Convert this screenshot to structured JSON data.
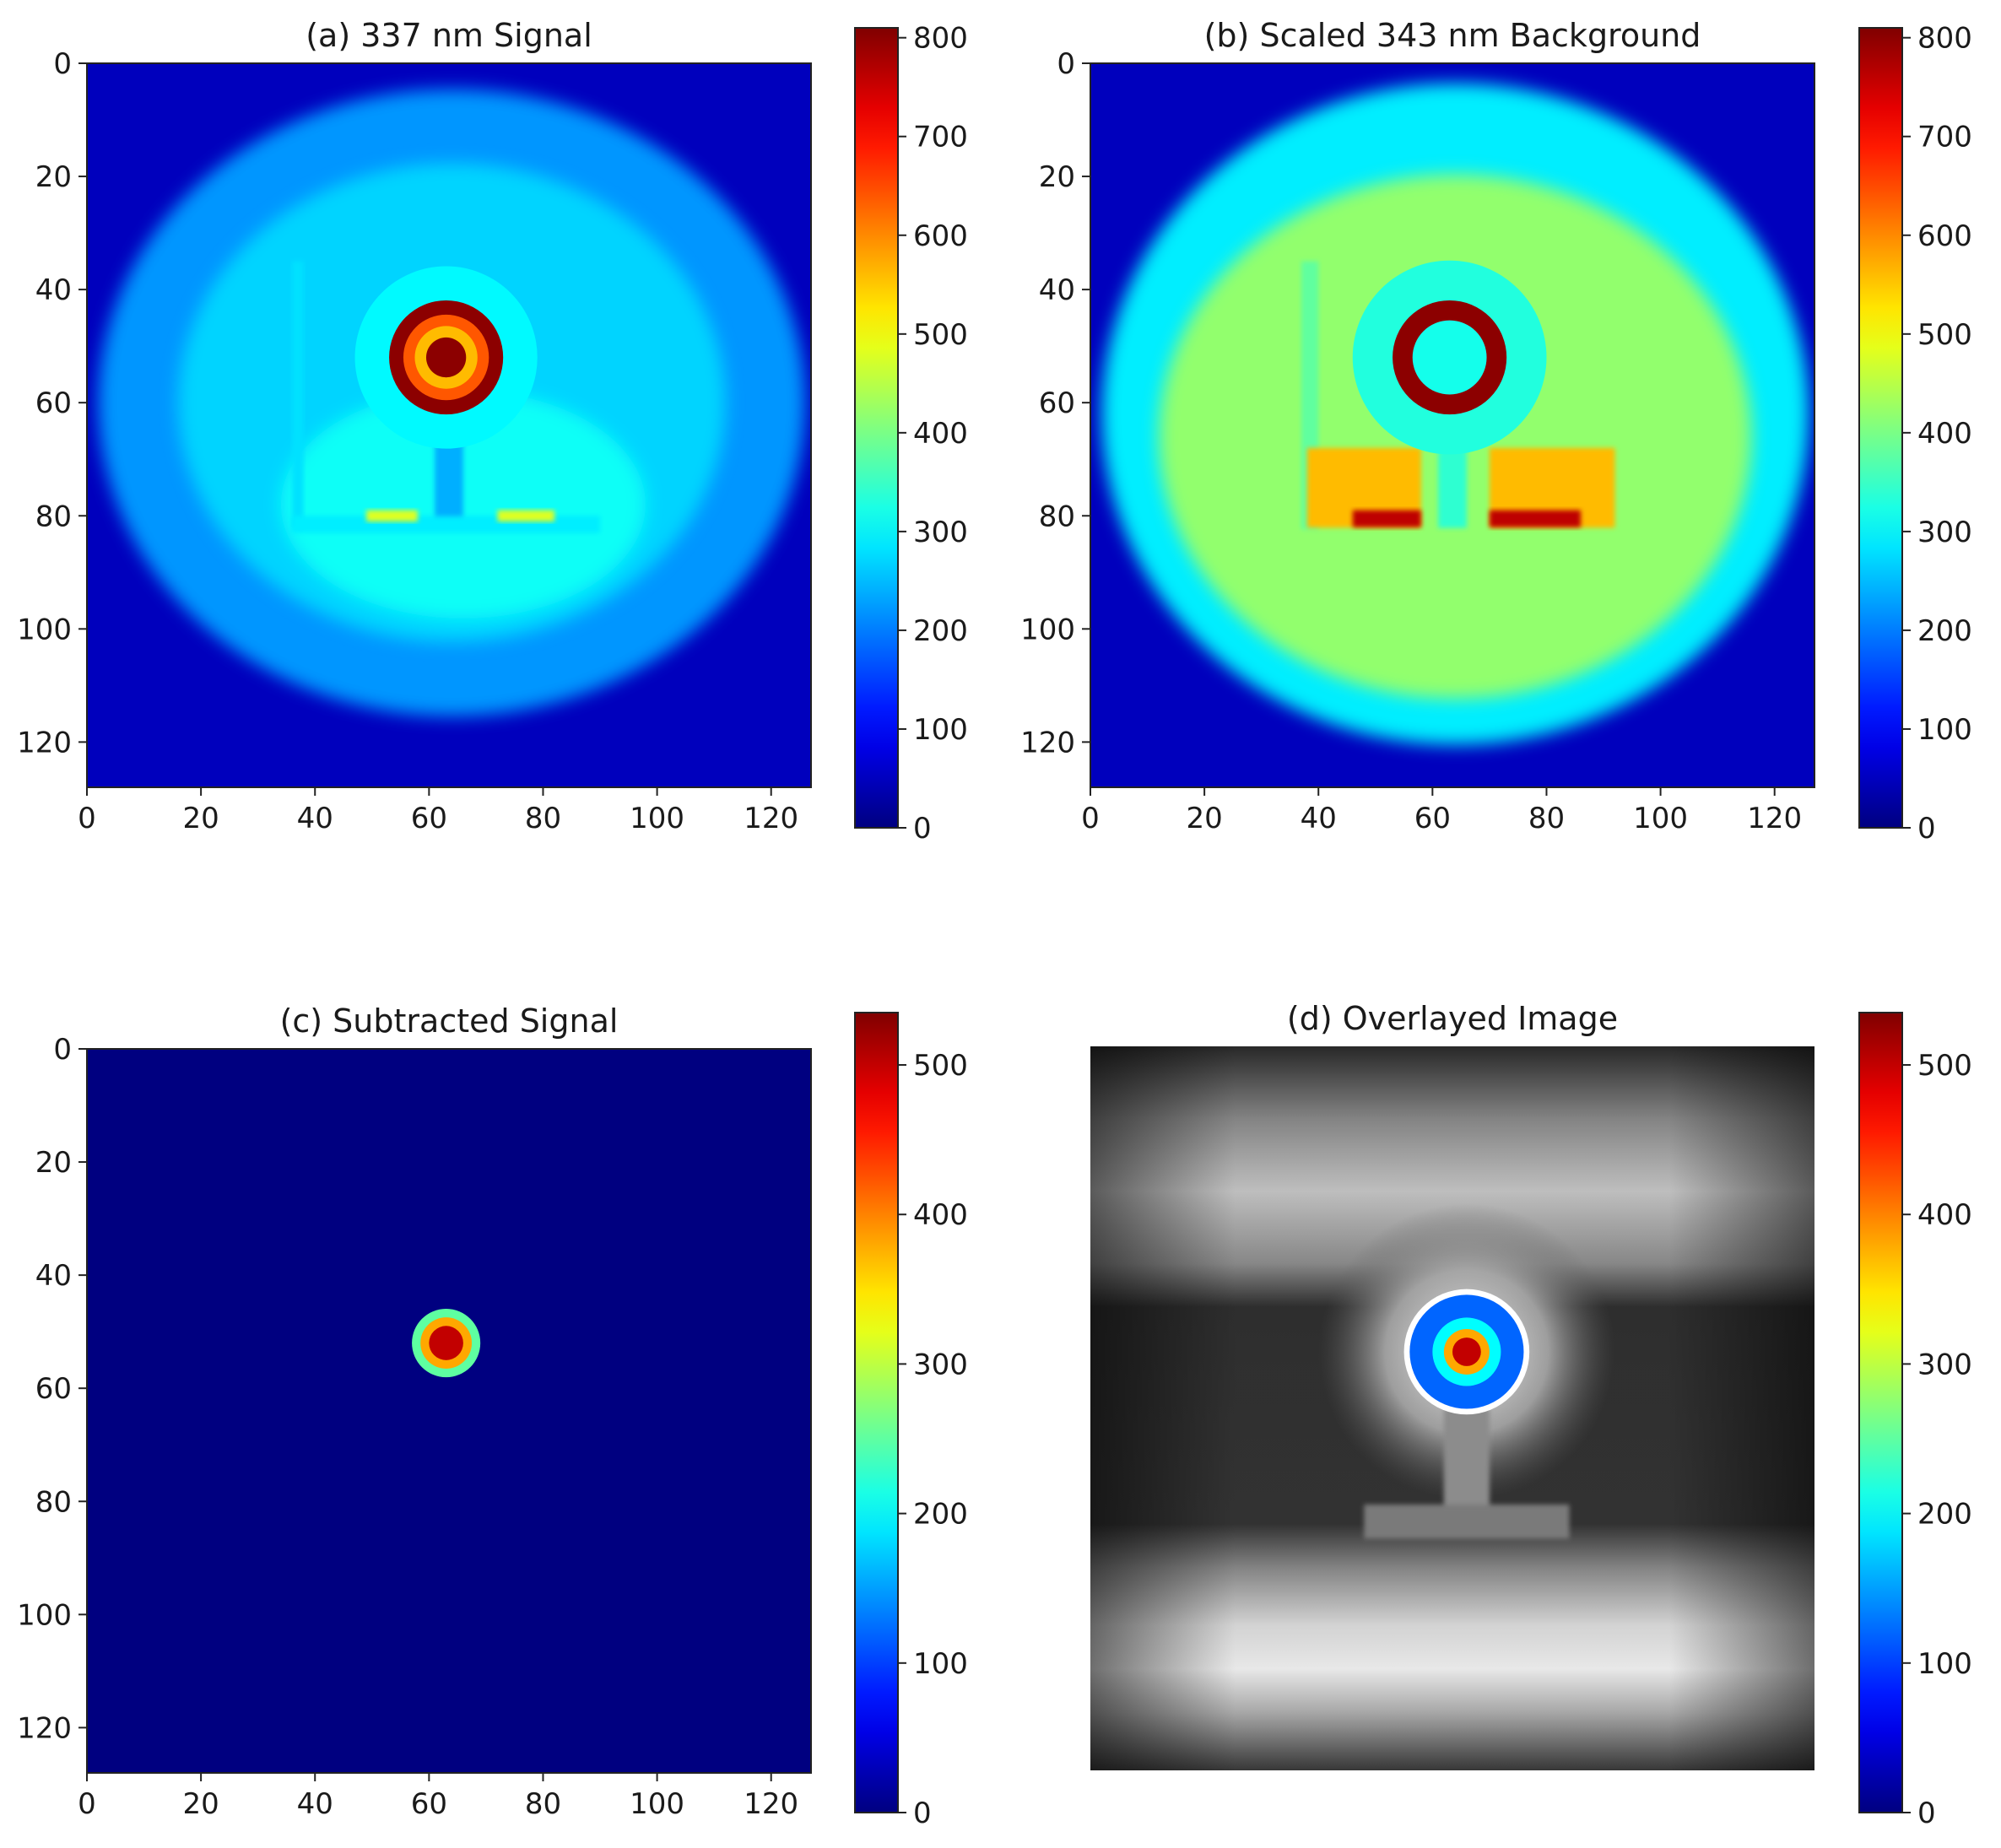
{
  "figure": {
    "background": "#ffffff",
    "colormap": "jet",
    "overlay_colormap": "gray"
  },
  "chart_data": [
    {
      "type": "heatmap",
      "panel": "a",
      "title": "(a) 337 nm Signal",
      "xlabel": "",
      "ylabel": "",
      "xlim": [
        0,
        127
      ],
      "ylim": [
        128,
        0
      ],
      "y_inverted": true,
      "x_ticks": [
        0,
        20,
        40,
        60,
        80,
        100,
        120
      ],
      "y_ticks": [
        0,
        20,
        40,
        60,
        80,
        100,
        120
      ],
      "colorbar": {
        "vmin": 0,
        "vmax": 810,
        "ticks": [
          0,
          100,
          200,
          300,
          400,
          500,
          600,
          700,
          800
        ]
      },
      "features": [
        {
          "kind": "field",
          "shape": "ellipse",
          "cx": 64,
          "cy": 60,
          "rx": 62,
          "ry": 55,
          "value": 220
        },
        {
          "kind": "field",
          "shape": "ellipse",
          "cx": 64,
          "cy": 60,
          "rx": 48,
          "ry": 42,
          "value": 270
        },
        {
          "kind": "field",
          "shape": "ellipse",
          "cx": 66,
          "cy": 78,
          "rx": 32,
          "ry": 20,
          "value": 310
        },
        {
          "kind": "region",
          "shape": "rect",
          "x0": 36,
          "y0": 35,
          "x1": 38,
          "y1": 82,
          "value": 280
        },
        {
          "kind": "region",
          "shape": "rect",
          "x0": 36,
          "y0": 80,
          "x1": 90,
          "y1": 83,
          "value": 290
        },
        {
          "kind": "region",
          "shape": "rect",
          "x0": 49,
          "y0": 79,
          "x1": 58,
          "y1": 81,
          "value": 480
        },
        {
          "kind": "region",
          "shape": "rect",
          "x0": 72,
          "y0": 79,
          "x1": 82,
          "y1": 81,
          "value": 480
        },
        {
          "kind": "region",
          "shape": "rect",
          "x0": 61,
          "y0": 64,
          "x1": 66,
          "y1": 80,
          "value": 240
        },
        {
          "kind": "disk",
          "cx": 63,
          "cy": 52,
          "r": 16,
          "value": 300
        },
        {
          "kind": "disk",
          "cx": 63,
          "cy": 52,
          "r": 10,
          "value": 800
        },
        {
          "kind": "disk",
          "cx": 63,
          "cy": 52,
          "r": 7.5,
          "value": 640
        },
        {
          "kind": "disk",
          "cx": 63,
          "cy": 52,
          "r": 5.5,
          "value": 560
        },
        {
          "kind": "disk",
          "cx": 63,
          "cy": 52,
          "r": 3.5,
          "value": 800
        }
      ]
    },
    {
      "type": "heatmap",
      "panel": "b",
      "title": "(b) Scaled 343 nm Background",
      "xlabel": "",
      "ylabel": "",
      "xlim": [
        0,
        127
      ],
      "ylim": [
        128,
        0
      ],
      "y_inverted": true,
      "x_ticks": [
        0,
        20,
        40,
        60,
        80,
        100,
        120
      ],
      "y_ticks": [
        0,
        20,
        40,
        60,
        80,
        100,
        120
      ],
      "colorbar": {
        "vmin": 0,
        "vmax": 810,
        "ticks": [
          0,
          100,
          200,
          300,
          400,
          500,
          600,
          700,
          800
        ]
      },
      "features": [
        {
          "kind": "field",
          "shape": "ellipse",
          "cx": 64,
          "cy": 62,
          "rx": 62,
          "ry": 58,
          "value": 290
        },
        {
          "kind": "field",
          "shape": "ellipse",
          "cx": 64,
          "cy": 66,
          "rx": 52,
          "ry": 46,
          "value": 420
        },
        {
          "kind": "region",
          "shape": "rect",
          "x0": 37,
          "y0": 35,
          "x1": 40,
          "y1": 82,
          "value": 380
        },
        {
          "kind": "region",
          "shape": "rect",
          "x0": 38,
          "y0": 68,
          "x1": 58,
          "y1": 82,
          "value": 560
        },
        {
          "kind": "region",
          "shape": "rect",
          "x0": 70,
          "y0": 68,
          "x1": 92,
          "y1": 82,
          "value": 560
        },
        {
          "kind": "region",
          "shape": "rect",
          "x0": 46,
          "y0": 79,
          "x1": 58,
          "y1": 82,
          "value": 760
        },
        {
          "kind": "region",
          "shape": "rect",
          "x0": 70,
          "y0": 79,
          "x1": 86,
          "y1": 82,
          "value": 760
        },
        {
          "kind": "region",
          "shape": "rect",
          "x0": 61,
          "y0": 64,
          "x1": 66,
          "y1": 82,
          "value": 340
        },
        {
          "kind": "disk",
          "cx": 63,
          "cy": 52,
          "r": 17,
          "value": 330
        },
        {
          "kind": "disk",
          "cx": 63,
          "cy": 52,
          "r": 10,
          "value": 800
        },
        {
          "kind": "disk",
          "cx": 63,
          "cy": 52,
          "r": 6.5,
          "value": 320
        }
      ]
    },
    {
      "type": "heatmap",
      "panel": "c",
      "title": "(c) Subtracted Signal",
      "xlabel": "",
      "ylabel": "",
      "xlim": [
        0,
        127
      ],
      "ylim": [
        128,
        0
      ],
      "y_inverted": true,
      "x_ticks": [
        0,
        20,
        40,
        60,
        80,
        100,
        120
      ],
      "y_ticks": [
        0,
        20,
        40,
        60,
        80,
        100,
        120
      ],
      "colorbar": {
        "vmin": 0,
        "vmax": 535,
        "ticks": [
          0,
          100,
          200,
          300,
          400,
          500
        ]
      },
      "features": [
        {
          "kind": "disk",
          "cx": 63,
          "cy": 52,
          "r": 6,
          "value": 250
        },
        {
          "kind": "disk",
          "cx": 63,
          "cy": 52,
          "r": 4.5,
          "value": 380
        },
        {
          "kind": "disk",
          "cx": 63,
          "cy": 52,
          "r": 3,
          "value": 500
        }
      ]
    },
    {
      "type": "heatmap",
      "panel": "d",
      "title": "(d) Overlayed Image",
      "xlabel": "",
      "ylabel": "",
      "axes_visible": false,
      "xlim": [
        0,
        127
      ],
      "ylim": [
        128,
        0
      ],
      "y_inverted": true,
      "colorbar": {
        "vmin": 0,
        "vmax": 535,
        "ticks": [
          0,
          100,
          200,
          300,
          400,
          500
        ]
      },
      "background": "grayscale",
      "features": [
        {
          "kind": "disk",
          "cx": 66,
          "cy": 54,
          "r": 10,
          "value": 120
        },
        {
          "kind": "disk",
          "cx": 66,
          "cy": 54,
          "r": 6,
          "value": 200
        },
        {
          "kind": "disk",
          "cx": 66,
          "cy": 54,
          "r": 4,
          "value": 380
        },
        {
          "kind": "disk",
          "cx": 66,
          "cy": 54,
          "r": 2.5,
          "value": 500
        }
      ]
    }
  ]
}
